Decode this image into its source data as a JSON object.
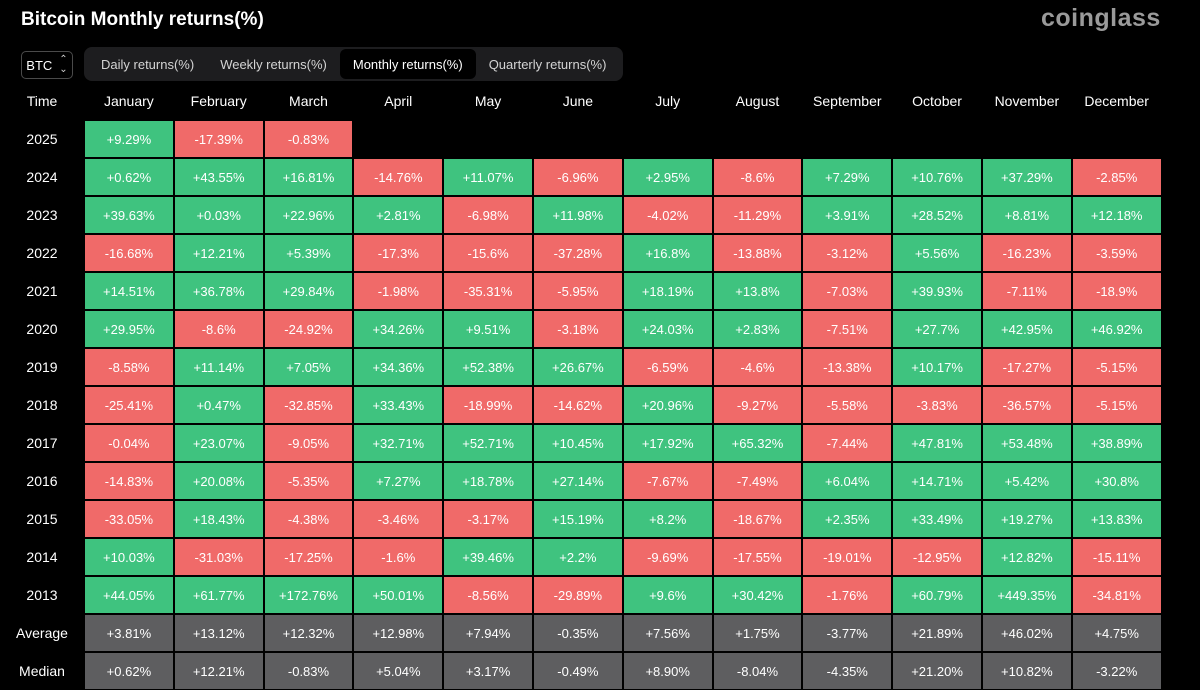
{
  "title": "Bitcoin Monthly returns(%)",
  "logo": "coinglass",
  "selector": {
    "value": "BTC",
    "icon": "chevron-up-down-icon"
  },
  "tabs": [
    {
      "label": "Daily returns(%)",
      "active": false
    },
    {
      "label": "Weekly returns(%)",
      "active": false
    },
    {
      "label": "Monthly returns(%)",
      "active": true
    },
    {
      "label": "Quarterly returns(%)",
      "active": false
    }
  ],
  "colors": {
    "positive": "#3fc37f",
    "negative": "#f06a69",
    "stat": "#5e5e60"
  },
  "table": {
    "columns": [
      "Time",
      "January",
      "February",
      "March",
      "April",
      "May",
      "June",
      "July",
      "August",
      "September",
      "October",
      "November",
      "December"
    ],
    "rows": [
      {
        "label": "2025",
        "values": [
          "+9.29%",
          "-17.39%",
          "-0.83%"
        ]
      },
      {
        "label": "2024",
        "values": [
          "+0.62%",
          "+43.55%",
          "+16.81%",
          "-14.76%",
          "+11.07%",
          "-6.96%",
          "+2.95%",
          "-8.6%",
          "+7.29%",
          "+10.76%",
          "+37.29%",
          "-2.85%"
        ]
      },
      {
        "label": "2023",
        "values": [
          "+39.63%",
          "+0.03%",
          "+22.96%",
          "+2.81%",
          "-6.98%",
          "+11.98%",
          "-4.02%",
          "-11.29%",
          "+3.91%",
          "+28.52%",
          "+8.81%",
          "+12.18%"
        ]
      },
      {
        "label": "2022",
        "values": [
          "-16.68%",
          "+12.21%",
          "+5.39%",
          "-17.3%",
          "-15.6%",
          "-37.28%",
          "+16.8%",
          "-13.88%",
          "-3.12%",
          "+5.56%",
          "-16.23%",
          "-3.59%"
        ]
      },
      {
        "label": "2021",
        "values": [
          "+14.51%",
          "+36.78%",
          "+29.84%",
          "-1.98%",
          "-35.31%",
          "-5.95%",
          "+18.19%",
          "+13.8%",
          "-7.03%",
          "+39.93%",
          "-7.11%",
          "-18.9%"
        ]
      },
      {
        "label": "2020",
        "values": [
          "+29.95%",
          "-8.6%",
          "-24.92%",
          "+34.26%",
          "+9.51%",
          "-3.18%",
          "+24.03%",
          "+2.83%",
          "-7.51%",
          "+27.7%",
          "+42.95%",
          "+46.92%"
        ]
      },
      {
        "label": "2019",
        "values": [
          "-8.58%",
          "+11.14%",
          "+7.05%",
          "+34.36%",
          "+52.38%",
          "+26.67%",
          "-6.59%",
          "-4.6%",
          "-13.38%",
          "+10.17%",
          "-17.27%",
          "-5.15%"
        ]
      },
      {
        "label": "2018",
        "values": [
          "-25.41%",
          "+0.47%",
          "-32.85%",
          "+33.43%",
          "-18.99%",
          "-14.62%",
          "+20.96%",
          "-9.27%",
          "-5.58%",
          "-3.83%",
          "-36.57%",
          "-5.15%"
        ]
      },
      {
        "label": "2017",
        "values": [
          "-0.04%",
          "+23.07%",
          "-9.05%",
          "+32.71%",
          "+52.71%",
          "+10.45%",
          "+17.92%",
          "+65.32%",
          "-7.44%",
          "+47.81%",
          "+53.48%",
          "+38.89%"
        ]
      },
      {
        "label": "2016",
        "values": [
          "-14.83%",
          "+20.08%",
          "-5.35%",
          "+7.27%",
          "+18.78%",
          "+27.14%",
          "-7.67%",
          "-7.49%",
          "+6.04%",
          "+14.71%",
          "+5.42%",
          "+30.8%"
        ]
      },
      {
        "label": "2015",
        "values": [
          "-33.05%",
          "+18.43%",
          "-4.38%",
          "-3.46%",
          "-3.17%",
          "+15.19%",
          "+8.2%",
          "-18.67%",
          "+2.35%",
          "+33.49%",
          "+19.27%",
          "+13.83%"
        ]
      },
      {
        "label": "2014",
        "values": [
          "+10.03%",
          "-31.03%",
          "-17.25%",
          "-1.6%",
          "+39.46%",
          "+2.2%",
          "-9.69%",
          "-17.55%",
          "-19.01%",
          "-12.95%",
          "+12.82%",
          "-15.11%"
        ]
      },
      {
        "label": "2013",
        "values": [
          "+44.05%",
          "+61.77%",
          "+172.76%",
          "+50.01%",
          "-8.56%",
          "-29.89%",
          "+9.6%",
          "+30.42%",
          "-1.76%",
          "+60.79%",
          "+449.35%",
          "-34.81%"
        ]
      }
    ],
    "summary": [
      {
        "label": "Average",
        "values": [
          "+3.81%",
          "+13.12%",
          "+12.32%",
          "+12.98%",
          "+7.94%",
          "-0.35%",
          "+7.56%",
          "+1.75%",
          "-3.77%",
          "+21.89%",
          "+46.02%",
          "+4.75%"
        ]
      },
      {
        "label": "Median",
        "values": [
          "+0.62%",
          "+12.21%",
          "-0.83%",
          "+5.04%",
          "+3.17%",
          "-0.49%",
          "+8.90%",
          "-8.04%",
          "-4.35%",
          "+21.20%",
          "+10.82%",
          "-3.22%"
        ]
      }
    ]
  }
}
